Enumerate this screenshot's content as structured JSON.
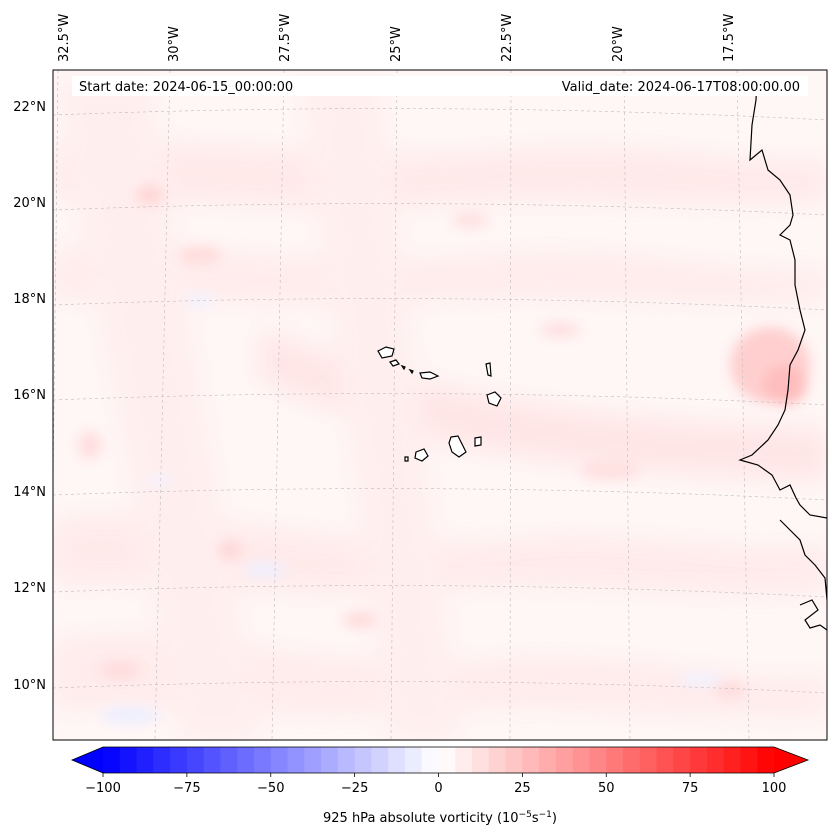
{
  "map": {
    "start_date": "Start date: 2024-06-15_00:00:00",
    "valid_date": "Valid_date: 2024-06-17T08:00:00.00",
    "lon_labels": [
      "32.5°W",
      "30°W",
      "27.5°W",
      "25°W",
      "22.5°W",
      "20°W",
      "17.5°W"
    ],
    "lat_labels": [
      "22°N",
      "20°N",
      "18°N",
      "16°N",
      "14°N",
      "12°N",
      "10°N"
    ],
    "colors": {
      "negative_max": "#0000ff",
      "neutral": "#ffffff",
      "positive_max": "#ff0000",
      "coastline": "#000000"
    }
  },
  "colorbar": {
    "label": "925 hPa absolute vorticity (10",
    "label_exp1": "−5",
    "label_mid": "s",
    "label_exp2": "−1",
    "label_end": ")",
    "min": -100,
    "max": 100,
    "levels": 41,
    "ticks": [
      "−100",
      "−75",
      "−50",
      "−25",
      "0",
      "25",
      "50",
      "75",
      "100"
    ],
    "extend": "both"
  }
}
